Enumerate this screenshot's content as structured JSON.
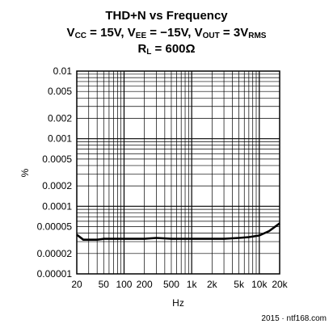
{
  "title": {
    "line1": "THD+N vs Frequency",
    "line2": {
      "vcc_sym": "V",
      "vcc_sub": "CC",
      "vcc_val": " = 15V, ",
      "vee_sym": "V",
      "vee_sub": "EE",
      "vee_val": " = −15V, ",
      "vout_sym": "V",
      "vout_sub": "OUT",
      "vout_val": " = 3V",
      "vrms_sub": "RMS"
    },
    "line3": {
      "rl_sym": "R",
      "rl_sub": "L",
      "rl_val": " = 600Ω"
    }
  },
  "watermark": "2015 · ntf168.com",
  "chart_data": {
    "type": "line",
    "xlabel": "Hz",
    "ylabel": "%",
    "x_scale": "log",
    "y_scale": "log",
    "xlim": [
      20,
      20000
    ],
    "ylim": [
      1e-05,
      0.01
    ],
    "grid": true,
    "x_ticks": [
      {
        "value": 20,
        "label": "20"
      },
      {
        "value": 50,
        "label": "50"
      },
      {
        "value": 100,
        "label": "100"
      },
      {
        "value": 200,
        "label": "200"
      },
      {
        "value": 500,
        "label": "500"
      },
      {
        "value": 1000,
        "label": "1k"
      },
      {
        "value": 2000,
        "label": "2k"
      },
      {
        "value": 5000,
        "label": "5k"
      },
      {
        "value": 10000,
        "label": "10k"
      },
      {
        "value": 20000,
        "label": "20k"
      }
    ],
    "y_ticks": [
      {
        "value": 0.01,
        "label": "0.01"
      },
      {
        "value": 0.005,
        "label": "0.005"
      },
      {
        "value": 0.002,
        "label": "0.002"
      },
      {
        "value": 0.001,
        "label": "0.001"
      },
      {
        "value": 0.0005,
        "label": "0.0005"
      },
      {
        "value": 0.0002,
        "label": "0.0002"
      },
      {
        "value": 0.0001,
        "label": "0.0001"
      },
      {
        "value": 5e-05,
        "label": "0.00005"
      },
      {
        "value": 2e-05,
        "label": "0.00002"
      },
      {
        "value": 1e-05,
        "label": "0.00001"
      }
    ],
    "series": [
      {
        "color": "#000000",
        "x": [
          20,
          25,
          30,
          40,
          50,
          70,
          100,
          150,
          200,
          300,
          500,
          700,
          1000,
          1500,
          2000,
          3000,
          5000,
          7000,
          10000,
          14000,
          20000
        ],
        "y": [
          3.8e-05,
          3.2e-05,
          3.2e-05,
          3.2e-05,
          3.3e-05,
          3.3e-05,
          3.3e-05,
          3.3e-05,
          3.3e-05,
          3.4e-05,
          3.3e-05,
          3.3e-05,
          3.3e-05,
          3.3e-05,
          3.3e-05,
          3.3e-05,
          3.4e-05,
          3.5e-05,
          3.7e-05,
          4.3e-05,
          5.6e-05
        ]
      }
    ]
  }
}
